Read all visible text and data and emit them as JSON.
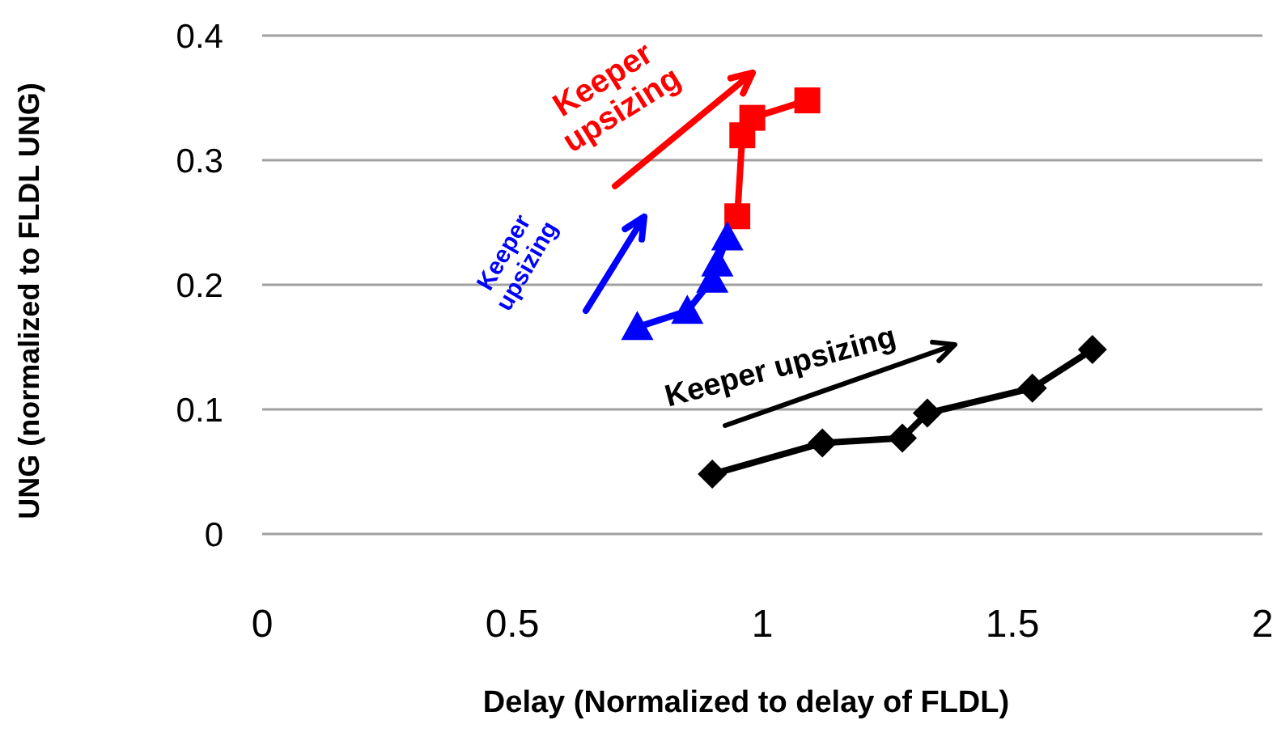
{
  "chart_data": {
    "type": "line",
    "xlabel": "Delay (Normalized to delay of FLDL)",
    "ylabel": "UNG (normalized to FLDL UNG)",
    "xlim": [
      0,
      2
    ],
    "xticks": [
      0,
      0.5,
      1,
      1.5,
      2
    ],
    "ylim": [
      0,
      0.4
    ],
    "yticks": [
      0,
      0.1,
      0.2,
      0.3,
      0.4
    ],
    "grid": "y",
    "line_style": "solid",
    "series": [
      {
        "color": "#ff0000",
        "marker": "square",
        "x": [
          0.95,
          0.96,
          0.98,
          1.09
        ],
        "values": [
          0.255,
          0.32,
          0.334,
          0.348
        ]
      },
      {
        "color": "#0000ff",
        "marker": "triangle",
        "x": [
          0.75,
          0.85,
          0.9,
          0.91,
          0.93
        ],
        "values": [
          0.166,
          0.179,
          0.204,
          0.217,
          0.238
        ]
      },
      {
        "color": "#000000",
        "marker": "diamond",
        "x": [
          0.9,
          1.12,
          1.28,
          1.33,
          1.54,
          1.66
        ],
        "values": [
          0.048,
          0.073,
          0.077,
          0.097,
          0.117,
          0.148
        ]
      }
    ],
    "annotations": [
      "Keeper upsizing",
      "Keeper upsizing",
      "Keeper upsizing"
    ]
  }
}
